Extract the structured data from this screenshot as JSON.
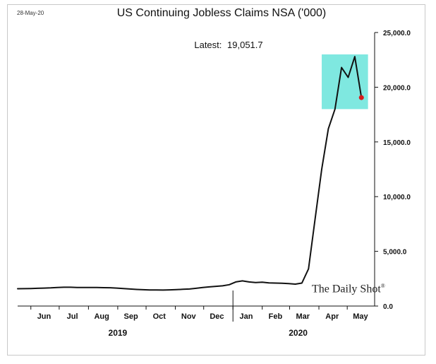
{
  "header": {
    "date_stamp": "28-May-20",
    "title": "US Continuing  Jobless Claims NSA ('000)",
    "latest_label": "Latest:",
    "latest_value": "19,051.7",
    "watermark": "The Daily Shot",
    "watermark_mark": "®"
  },
  "colors": {
    "line": "#111111",
    "highlight_fill": "#7fe8e0",
    "last_point": "#d81b1b"
  },
  "chart_data": {
    "type": "line",
    "title": "US Continuing  Jobless Claims NSA ('000)",
    "ylim": [
      0,
      25000
    ],
    "y_ticks": [
      {
        "value": 0,
        "label": "0.0"
      },
      {
        "value": 5000,
        "label": "5,000.0"
      },
      {
        "value": 10000,
        "label": "10,000.0"
      },
      {
        "value": 15000,
        "label": "15,000.0"
      },
      {
        "value": 20000,
        "label": "20,000.0"
      },
      {
        "value": 25000,
        "label": "25,000.0"
      }
    ],
    "x_range": [
      "2019-05-18",
      "2020-05-30"
    ],
    "month_labels": [
      {
        "date": "2019-06-15",
        "label": "Jun"
      },
      {
        "date": "2019-07-15",
        "label": "Jul"
      },
      {
        "date": "2019-08-15",
        "label": "Aug"
      },
      {
        "date": "2019-09-15",
        "label": "Sep"
      },
      {
        "date": "2019-10-15",
        "label": "Oct"
      },
      {
        "date": "2019-11-15",
        "label": "Nov"
      },
      {
        "date": "2019-12-15",
        "label": "Dec"
      },
      {
        "date": "2020-01-15",
        "label": "Jan"
      },
      {
        "date": "2020-02-15",
        "label": "Feb"
      },
      {
        "date": "2020-03-15",
        "label": "Mar"
      },
      {
        "date": "2020-04-15",
        "label": "Apr"
      },
      {
        "date": "2020-05-15",
        "label": "May"
      }
    ],
    "month_ticks": [
      "2019-06-01",
      "2019-07-01",
      "2019-08-01",
      "2019-09-01",
      "2019-10-01",
      "2019-11-01",
      "2019-12-01",
      "2020-01-01",
      "2020-02-01",
      "2020-03-01",
      "2020-04-01",
      "2020-05-01"
    ],
    "year_divider": "2020-01-01",
    "years": [
      {
        "label": "2019",
        "date": "2019-09-01"
      },
      {
        "label": "2020",
        "date": "2020-03-10"
      }
    ],
    "highlight": {
      "x": [
        "2020-04-04",
        "2020-05-23"
      ],
      "y": [
        18000,
        23000
      ]
    },
    "series": [
      {
        "points": [
          [
            "2019-05-18",
            1580
          ],
          [
            "2019-05-25",
            1590
          ],
          [
            "2019-06-01",
            1600
          ],
          [
            "2019-06-08",
            1620
          ],
          [
            "2019-06-15",
            1640
          ],
          [
            "2019-06-22",
            1660
          ],
          [
            "2019-06-29",
            1700
          ],
          [
            "2019-07-06",
            1720
          ],
          [
            "2019-07-13",
            1720
          ],
          [
            "2019-07-20",
            1700
          ],
          [
            "2019-07-27",
            1700
          ],
          [
            "2019-08-03",
            1700
          ],
          [
            "2019-08-10",
            1690
          ],
          [
            "2019-08-17",
            1680
          ],
          [
            "2019-08-24",
            1670
          ],
          [
            "2019-08-31",
            1640
          ],
          [
            "2019-09-07",
            1600
          ],
          [
            "2019-09-14",
            1560
          ],
          [
            "2019-09-21",
            1520
          ],
          [
            "2019-09-28",
            1490
          ],
          [
            "2019-10-05",
            1470
          ],
          [
            "2019-10-12",
            1470
          ],
          [
            "2019-10-19",
            1460
          ],
          [
            "2019-10-26",
            1480
          ],
          [
            "2019-11-02",
            1500
          ],
          [
            "2019-11-09",
            1530
          ],
          [
            "2019-11-16",
            1560
          ],
          [
            "2019-11-23",
            1620
          ],
          [
            "2019-11-30",
            1700
          ],
          [
            "2019-12-07",
            1750
          ],
          [
            "2019-12-14",
            1800
          ],
          [
            "2019-12-21",
            1850
          ],
          [
            "2019-12-28",
            1950
          ],
          [
            "2020-01-04",
            2200
          ],
          [
            "2020-01-11",
            2300
          ],
          [
            "2020-01-18",
            2200
          ],
          [
            "2020-01-25",
            2150
          ],
          [
            "2020-02-01",
            2180
          ],
          [
            "2020-02-08",
            2120
          ],
          [
            "2020-02-15",
            2100
          ],
          [
            "2020-02-22",
            2080
          ],
          [
            "2020-02-29",
            2050
          ],
          [
            "2020-03-07",
            2000
          ],
          [
            "2020-03-14",
            2100
          ],
          [
            "2020-03-21",
            3400
          ],
          [
            "2020-03-28",
            8000
          ],
          [
            "2020-04-04",
            12500
          ],
          [
            "2020-04-11",
            16200
          ],
          [
            "2020-04-18",
            18000
          ],
          [
            "2020-04-25",
            21800
          ],
          [
            "2020-05-02",
            20900
          ],
          [
            "2020-05-09",
            22800
          ],
          [
            "2020-05-16",
            19051.7
          ]
        ]
      }
    ],
    "last_point": {
      "date": "2020-05-16",
      "value": 19051.7
    }
  }
}
